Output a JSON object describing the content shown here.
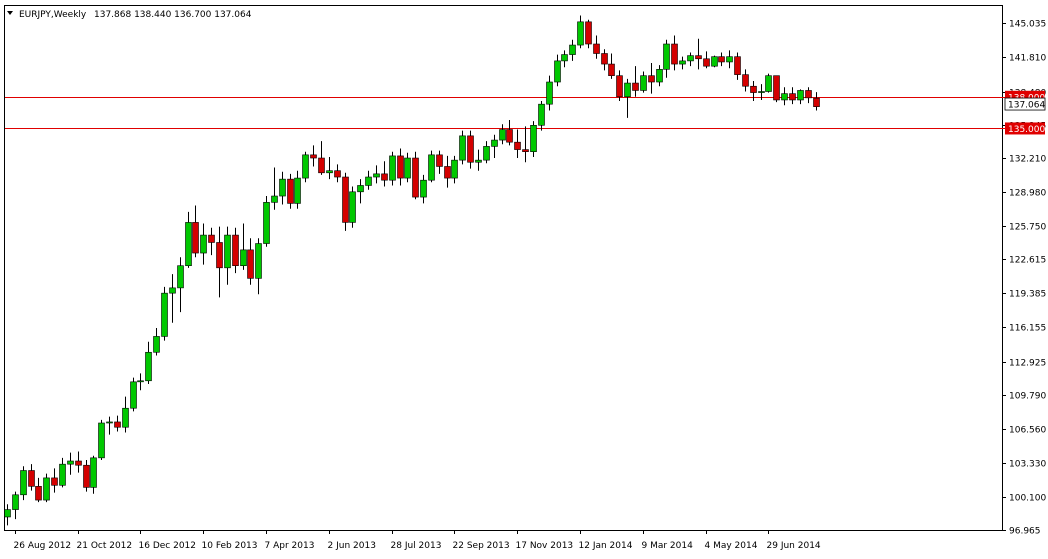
{
  "header": {
    "symbol": "EURJPY,Weekly",
    "ohlc": "137.868 138.440 136.700 137.064"
  },
  "colors": {
    "background": "#ffffff",
    "frame": "#000000",
    "bull": "#00c800",
    "bear": "#d40000",
    "wick": "#000000",
    "hline": "#e00000",
    "price_tag": "#e00000"
  },
  "chart_data": {
    "type": "candlestick",
    "ylim": [
      96.965,
      146.6
    ],
    "y_ticks": [
      96.965,
      100.1,
      103.33,
      106.56,
      109.79,
      112.925,
      116.155,
      119.385,
      122.615,
      125.75,
      128.98,
      132.21,
      135.345,
      138.48,
      141.81,
      145.035
    ],
    "x_ticks": [
      "26 Aug 2012",
      "21 Oct 2012",
      "16 Dec 2012",
      "10 Feb 2013",
      "7 Apr 2013",
      "2 Jun 2013",
      "28 Jul 2013",
      "22 Sep 2013",
      "17 Nov 2013",
      "12 Jan 2014",
      "9 Mar 2014",
      "4 May 2014",
      "29 Jun 2014"
    ],
    "x_tick_index": [
      1,
      9,
      17,
      25,
      33,
      41,
      49,
      57,
      65,
      73,
      81,
      89,
      97
    ],
    "horizontal_lines": [
      {
        "price": 138.0,
        "label": "138.000"
      },
      {
        "price": 135.0,
        "label": "135.000"
      }
    ],
    "last_price": {
      "price": 137.064,
      "label": "137.064"
    },
    "candles": [
      {
        "o": 98.2,
        "h": 99.4,
        "l": 97.4,
        "c": 98.9
      },
      {
        "o": 98.9,
        "h": 100.6,
        "l": 98.0,
        "c": 100.3
      },
      {
        "o": 100.3,
        "h": 103.0,
        "l": 99.8,
        "c": 102.6
      },
      {
        "o": 102.6,
        "h": 103.2,
        "l": 100.7,
        "c": 101.1
      },
      {
        "o": 101.1,
        "h": 101.9,
        "l": 99.6,
        "c": 99.8
      },
      {
        "o": 99.8,
        "h": 102.3,
        "l": 99.6,
        "c": 101.9
      },
      {
        "o": 101.9,
        "h": 102.8,
        "l": 100.5,
        "c": 101.2
      },
      {
        "o": 101.2,
        "h": 103.8,
        "l": 101.0,
        "c": 103.2
      },
      {
        "o": 103.2,
        "h": 104.3,
        "l": 102.2,
        "c": 103.5
      },
      {
        "o": 103.5,
        "h": 104.4,
        "l": 102.4,
        "c": 103.1
      },
      {
        "o": 103.1,
        "h": 103.6,
        "l": 100.6,
        "c": 101.0
      },
      {
        "o": 101.0,
        "h": 104.0,
        "l": 100.4,
        "c": 103.8
      },
      {
        "o": 103.8,
        "h": 107.4,
        "l": 103.6,
        "c": 107.1
      },
      {
        "o": 107.1,
        "h": 107.7,
        "l": 106.0,
        "c": 107.2
      },
      {
        "o": 107.2,
        "h": 107.8,
        "l": 106.3,
        "c": 106.7
      },
      {
        "o": 106.7,
        "h": 109.6,
        "l": 106.2,
        "c": 108.5
      },
      {
        "o": 108.5,
        "h": 111.4,
        "l": 108.2,
        "c": 111.0
      },
      {
        "o": 111.0,
        "h": 111.8,
        "l": 110.2,
        "c": 111.1
      },
      {
        "o": 111.1,
        "h": 114.8,
        "l": 110.8,
        "c": 113.8
      },
      {
        "o": 113.8,
        "h": 116.1,
        "l": 113.5,
        "c": 115.3
      },
      {
        "o": 115.3,
        "h": 120.0,
        "l": 114.9,
        "c": 119.4
      },
      {
        "o": 119.4,
        "h": 121.2,
        "l": 116.6,
        "c": 119.9
      },
      {
        "o": 119.9,
        "h": 122.8,
        "l": 117.6,
        "c": 122.0
      },
      {
        "o": 122.0,
        "h": 127.1,
        "l": 121.8,
        "c": 126.1
      },
      {
        "o": 126.1,
        "h": 127.7,
        "l": 122.8,
        "c": 123.2
      },
      {
        "o": 123.2,
        "h": 126.0,
        "l": 122.1,
        "c": 124.9
      },
      {
        "o": 124.9,
        "h": 125.6,
        "l": 123.0,
        "c": 124.2
      },
      {
        "o": 124.2,
        "h": 125.7,
        "l": 119.0,
        "c": 121.8
      },
      {
        "o": 121.8,
        "h": 125.7,
        "l": 120.2,
        "c": 124.9
      },
      {
        "o": 124.9,
        "h": 125.6,
        "l": 121.3,
        "c": 122.0
      },
      {
        "o": 122.0,
        "h": 126.0,
        "l": 121.6,
        "c": 123.5
      },
      {
        "o": 123.5,
        "h": 124.6,
        "l": 120.2,
        "c": 120.8
      },
      {
        "o": 120.8,
        "h": 124.6,
        "l": 119.3,
        "c": 124.1
      },
      {
        "o": 124.1,
        "h": 128.6,
        "l": 123.8,
        "c": 128.0
      },
      {
        "o": 128.0,
        "h": 131.3,
        "l": 127.3,
        "c": 128.6
      },
      {
        "o": 128.6,
        "h": 130.9,
        "l": 127.8,
        "c": 130.2
      },
      {
        "o": 130.2,
        "h": 130.7,
        "l": 127.4,
        "c": 127.9
      },
      {
        "o": 127.9,
        "h": 131.0,
        "l": 127.4,
        "c": 130.3
      },
      {
        "o": 130.3,
        "h": 132.8,
        "l": 129.9,
        "c": 132.5
      },
      {
        "o": 132.5,
        "h": 133.4,
        "l": 131.4,
        "c": 132.2
      },
      {
        "o": 132.2,
        "h": 133.8,
        "l": 130.6,
        "c": 130.8
      },
      {
        "o": 130.8,
        "h": 132.3,
        "l": 130.2,
        "c": 131.0
      },
      {
        "o": 131.0,
        "h": 131.6,
        "l": 129.9,
        "c": 130.4
      },
      {
        "o": 130.4,
        "h": 130.8,
        "l": 125.3,
        "c": 126.1
      },
      {
        "o": 126.1,
        "h": 129.5,
        "l": 125.6,
        "c": 129.0
      },
      {
        "o": 129.0,
        "h": 130.2,
        "l": 127.9,
        "c": 129.6
      },
      {
        "o": 129.6,
        "h": 131.0,
        "l": 129.2,
        "c": 130.4
      },
      {
        "o": 130.4,
        "h": 131.5,
        "l": 129.8,
        "c": 130.7
      },
      {
        "o": 130.7,
        "h": 131.9,
        "l": 129.5,
        "c": 130.1
      },
      {
        "o": 130.1,
        "h": 132.8,
        "l": 129.6,
        "c": 132.4
      },
      {
        "o": 132.4,
        "h": 133.1,
        "l": 129.6,
        "c": 130.3
      },
      {
        "o": 130.3,
        "h": 132.7,
        "l": 129.9,
        "c": 132.2
      },
      {
        "o": 132.2,
        "h": 132.8,
        "l": 128.3,
        "c": 128.5
      },
      {
        "o": 128.5,
        "h": 130.6,
        "l": 127.9,
        "c": 130.1
      },
      {
        "o": 130.1,
        "h": 132.9,
        "l": 129.9,
        "c": 132.5
      },
      {
        "o": 132.5,
        "h": 132.9,
        "l": 130.7,
        "c": 131.4
      },
      {
        "o": 131.4,
        "h": 132.4,
        "l": 129.4,
        "c": 130.3
      },
      {
        "o": 130.3,
        "h": 132.4,
        "l": 129.8,
        "c": 132.0
      },
      {
        "o": 132.0,
        "h": 134.8,
        "l": 131.6,
        "c": 134.3
      },
      {
        "o": 134.3,
        "h": 134.8,
        "l": 131.2,
        "c": 131.8
      },
      {
        "o": 131.8,
        "h": 133.0,
        "l": 131.0,
        "c": 132.0
      },
      {
        "o": 132.0,
        "h": 133.8,
        "l": 131.7,
        "c": 133.3
      },
      {
        "o": 133.3,
        "h": 134.4,
        "l": 132.2,
        "c": 133.9
      },
      {
        "o": 133.9,
        "h": 135.4,
        "l": 133.5,
        "c": 134.9
      },
      {
        "o": 134.9,
        "h": 135.8,
        "l": 133.4,
        "c": 133.7
      },
      {
        "o": 133.7,
        "h": 134.9,
        "l": 132.2,
        "c": 133.0
      },
      {
        "o": 133.0,
        "h": 135.2,
        "l": 131.8,
        "c": 132.8
      },
      {
        "o": 132.8,
        "h": 135.7,
        "l": 132.3,
        "c": 135.3
      },
      {
        "o": 135.3,
        "h": 137.6,
        "l": 134.8,
        "c": 137.3
      },
      {
        "o": 137.3,
        "h": 140.0,
        "l": 136.7,
        "c": 139.4
      },
      {
        "o": 139.4,
        "h": 142.0,
        "l": 139.0,
        "c": 141.4
      },
      {
        "o": 141.4,
        "h": 142.4,
        "l": 140.8,
        "c": 142.0
      },
      {
        "o": 142.0,
        "h": 143.4,
        "l": 141.4,
        "c": 142.9
      },
      {
        "o": 142.9,
        "h": 145.7,
        "l": 142.6,
        "c": 145.1
      },
      {
        "o": 145.1,
        "h": 145.3,
        "l": 142.6,
        "c": 143.0
      },
      {
        "o": 143.0,
        "h": 143.8,
        "l": 141.6,
        "c": 142.1
      },
      {
        "o": 142.1,
        "h": 142.5,
        "l": 140.5,
        "c": 141.1
      },
      {
        "o": 141.1,
        "h": 142.1,
        "l": 139.7,
        "c": 140.0
      },
      {
        "o": 140.0,
        "h": 140.5,
        "l": 137.6,
        "c": 138.0
      },
      {
        "o": 138.0,
        "h": 139.7,
        "l": 136.0,
        "c": 139.3
      },
      {
        "o": 139.3,
        "h": 140.9,
        "l": 138.0,
        "c": 138.6
      },
      {
        "o": 138.6,
        "h": 140.4,
        "l": 138.4,
        "c": 140.0
      },
      {
        "o": 140.0,
        "h": 141.2,
        "l": 138.3,
        "c": 139.4
      },
      {
        "o": 139.4,
        "h": 141.0,
        "l": 139.0,
        "c": 140.6
      },
      {
        "o": 140.6,
        "h": 143.4,
        "l": 139.8,
        "c": 143.0
      },
      {
        "o": 143.0,
        "h": 143.8,
        "l": 140.5,
        "c": 141.1
      },
      {
        "o": 141.1,
        "h": 141.8,
        "l": 140.6,
        "c": 141.4
      },
      {
        "o": 141.4,
        "h": 142.2,
        "l": 140.9,
        "c": 141.9
      },
      {
        "o": 141.9,
        "h": 143.5,
        "l": 140.6,
        "c": 141.6
      },
      {
        "o": 141.6,
        "h": 142.3,
        "l": 140.7,
        "c": 140.9
      },
      {
        "o": 140.9,
        "h": 141.9,
        "l": 140.8,
        "c": 141.8
      },
      {
        "o": 141.8,
        "h": 142.2,
        "l": 140.9,
        "c": 141.3
      },
      {
        "o": 141.3,
        "h": 142.4,
        "l": 140.7,
        "c": 141.8
      },
      {
        "o": 141.8,
        "h": 142.2,
        "l": 139.6,
        "c": 140.1
      },
      {
        "o": 140.1,
        "h": 140.6,
        "l": 138.5,
        "c": 139.0
      },
      {
        "o": 139.0,
        "h": 139.5,
        "l": 137.6,
        "c": 138.4
      },
      {
        "o": 138.4,
        "h": 139.2,
        "l": 137.7,
        "c": 138.5
      },
      {
        "o": 138.5,
        "h": 140.2,
        "l": 138.4,
        "c": 140.0
      },
      {
        "o": 140.0,
        "h": 140.0,
        "l": 137.5,
        "c": 137.7
      },
      {
        "o": 137.7,
        "h": 138.9,
        "l": 137.2,
        "c": 138.3
      },
      {
        "o": 138.3,
        "h": 138.9,
        "l": 137.3,
        "c": 137.7
      },
      {
        "o": 137.7,
        "h": 138.7,
        "l": 137.3,
        "c": 138.6
      },
      {
        "o": 138.6,
        "h": 138.9,
        "l": 137.4,
        "c": 137.9
      },
      {
        "o": 137.868,
        "h": 138.44,
        "l": 136.7,
        "c": 137.064
      }
    ]
  }
}
